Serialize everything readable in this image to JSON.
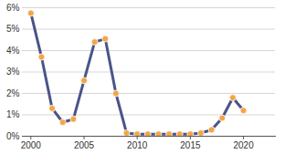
{
  "chart_data": {
    "type": "line",
    "x": [
      2000,
      2001,
      2002,
      2003,
      2004,
      2005,
      2006,
      2007,
      2008,
      2009,
      2010,
      2011,
      2012,
      2013,
      2014,
      2015,
      2016,
      2017,
      2018,
      2019,
      2020
    ],
    "values": [
      5.75,
      3.7,
      1.3,
      0.65,
      0.8,
      2.6,
      4.4,
      4.55,
      2.0,
      0.15,
      0.1,
      0.1,
      0.1,
      0.1,
      0.1,
      0.1,
      0.15,
      0.3,
      0.85,
      1.8,
      1.2
    ],
    "color": "#4b5488",
    "marker": "circle",
    "xlim": [
      1999.2,
      2023
    ],
    "xticks": [
      2000,
      2005,
      2010,
      2015,
      2020
    ],
    "ylim": [
      0,
      6
    ],
    "yticks": [
      {
        "value": 0,
        "label": "0%"
      },
      {
        "value": 1,
        "label": "1%"
      },
      {
        "value": 2,
        "label": "2%"
      },
      {
        "value": 3,
        "label": "3%"
      },
      {
        "value": 4,
        "label": "4%"
      },
      {
        "value": 5,
        "label": "5%"
      },
      {
        "value": 6,
        "label": "6%"
      }
    ],
    "grid": true
  }
}
